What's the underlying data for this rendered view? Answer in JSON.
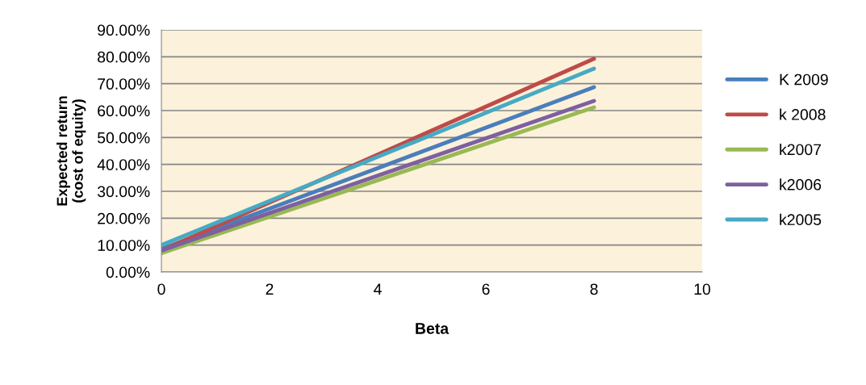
{
  "chart_data": {
    "type": "line",
    "xlabel": "Beta",
    "ylabel": "Expected return\n(cost of equity)",
    "x": [
      0,
      8
    ],
    "series": [
      {
        "name": "K 2009",
        "color": "#4a7ebb",
        "values": [
          8.5,
          68.7
        ]
      },
      {
        "name": "k 2008",
        "color": "#be4b48",
        "values": [
          8,
          79.3
        ]
      },
      {
        "name": "k2007",
        "color": "#98b954",
        "values": [
          7,
          61.2
        ]
      },
      {
        "name": "k2006",
        "color": "#7d60a0",
        "values": [
          8,
          63.6
        ]
      },
      {
        "name": "k2005",
        "color": "#46aac5",
        "values": [
          10,
          75.6
        ]
      }
    ],
    "xlim": [
      0,
      10
    ],
    "xticks": [
      0,
      2,
      4,
      6,
      8,
      10
    ],
    "ylim": [
      0,
      90
    ],
    "yticks": [
      {
        "value": 0,
        "label": "0.00%"
      },
      {
        "value": 10,
        "label": "10.00%"
      },
      {
        "value": 20,
        "label": "20.00%"
      },
      {
        "value": 30,
        "label": "30.00%"
      },
      {
        "value": 40,
        "label": "40.00%"
      },
      {
        "value": 50,
        "label": "50.00%"
      },
      {
        "value": 60,
        "label": "60.00%"
      },
      {
        "value": 70,
        "label": "70.00%"
      },
      {
        "value": 80,
        "label": "80.00%"
      },
      {
        "value": 90,
        "label": "90.00%"
      }
    ],
    "grid": "y",
    "legend": "right",
    "marker": "none",
    "line_style": "solid"
  }
}
